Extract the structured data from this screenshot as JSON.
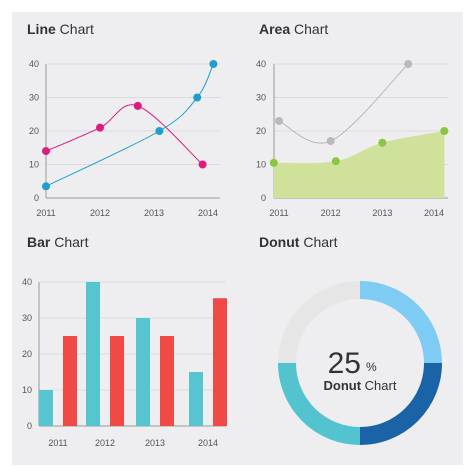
{
  "colors": {
    "grid": "#d6d6d8",
    "axis": "#9a9a9a",
    "line_pink": "#e0197d",
    "line_blue": "#1e9fd0",
    "area_gray": "#b9b9b9",
    "area_green": "#8cc63e",
    "area_fill": "#cfe19a",
    "bar_teal": "#56c5cf",
    "bar_red": "#ef4a46",
    "donut_track": "#e6e6e6",
    "donut_light_blue": "#7ecbf3",
    "donut_dark_blue": "#1a63a6",
    "donut_teal": "#52c3cf"
  },
  "chart_data": [
    {
      "type": "line",
      "title_bold": "Line",
      "title_rest": "Chart",
      "categories": [
        "2011",
        "2012",
        "2013",
        "2014"
      ],
      "ylim": [
        0,
        40
      ],
      "yticks": [
        "0",
        "10",
        "20",
        "30",
        "40"
      ],
      "grid": true,
      "series": [
        {
          "color_key": "line_pink",
          "points": [
            [
              2011,
              14
            ],
            [
              2012,
              21
            ],
            [
              2012.7,
              27.5
            ],
            [
              2013.9,
              10
            ]
          ]
        },
        {
          "color_key": "line_blue",
          "points": [
            [
              2011,
              3.5
            ],
            [
              2013.1,
              20
            ],
            [
              2013.8,
              30
            ],
            [
              2014.1,
              40
            ]
          ]
        }
      ]
    },
    {
      "type": "area",
      "title_bold": "Area",
      "title_rest": "Chart",
      "categories": [
        "2011",
        "2012",
        "2013",
        "2014"
      ],
      "ylim": [
        0,
        40
      ],
      "yticks": [
        "0",
        "10",
        "20",
        "30",
        "40"
      ],
      "grid": true,
      "series": [
        {
          "color_key": "area_gray",
          "points": [
            [
              2011,
              23
            ],
            [
              2012,
              17
            ],
            [
              2013.5,
              40
            ]
          ]
        },
        {
          "color_key": "area_green",
          "filled": true,
          "points": [
            [
              2010.9,
              10.5
            ],
            [
              2012.1,
              11
            ],
            [
              2013,
              16.5
            ],
            [
              2014.2,
              20
            ]
          ]
        }
      ]
    },
    {
      "type": "bar",
      "title_bold": "Bar",
      "title_rest": "Chart",
      "categories": [
        "2011",
        "2012",
        "2013",
        "2014"
      ],
      "ylim": [
        0,
        40
      ],
      "yticks": [
        "0",
        "10",
        "20",
        "30",
        "40"
      ],
      "grid": true,
      "series": [
        {
          "color_key": "bar_teal",
          "values": [
            10,
            40,
            30,
            15
          ]
        },
        {
          "color_key": "bar_red",
          "values": [
            25,
            25,
            25,
            35.5
          ]
        }
      ]
    },
    {
      "type": "donut",
      "title_bold": "Donut",
      "title_rest": "Chart",
      "center_value": "25",
      "center_unit": "%",
      "center_label_bold": "Donut",
      "center_label_rest": "Chart",
      "segments": [
        {
          "color_key": "donut_light_blue",
          "value": 25
        },
        {
          "color_key": "donut_dark_blue",
          "value": 25
        },
        {
          "color_key": "donut_teal",
          "value": 25
        },
        {
          "color_key": "donut_track",
          "value": 25
        }
      ]
    }
  ]
}
